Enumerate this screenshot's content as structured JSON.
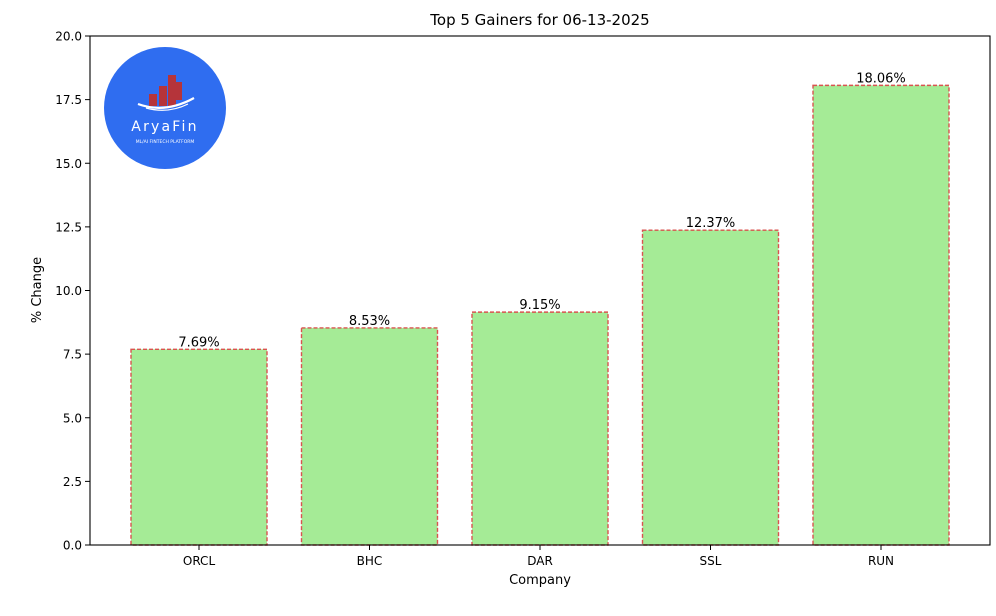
{
  "chart_data": {
    "type": "bar",
    "title": "Top 5 Gainers for 06-13-2025",
    "xlabel": "Company",
    "ylabel": "% Change",
    "categories": [
      "ORCL",
      "BHC",
      "DAR",
      "SSL",
      "RUN"
    ],
    "values": [
      7.69,
      8.53,
      9.15,
      12.37,
      18.06
    ],
    "data_labels": [
      "7.69%",
      "8.53%",
      "9.15%",
      "12.37%",
      "18.06%"
    ],
    "ylim": [
      0,
      20
    ],
    "yticks": [
      0,
      2.5,
      5,
      7.5,
      10,
      12.5,
      15,
      17.5,
      20
    ],
    "ytick_labels": [
      "0.0",
      "2.5",
      "5.0",
      "7.5",
      "10.0",
      "12.5",
      "15.0",
      "17.5",
      "20.0"
    ],
    "grid": false,
    "bar_color": "#a5eb96",
    "bar_edge_color": "#d9534f",
    "bar_edge_style": "dashed"
  },
  "logo": {
    "name": "AryaFin",
    "tagline": "ML/AI FINTECH PLATFORM",
    "circle_color": "#2f6df0",
    "bars_color": "#b5343a"
  }
}
